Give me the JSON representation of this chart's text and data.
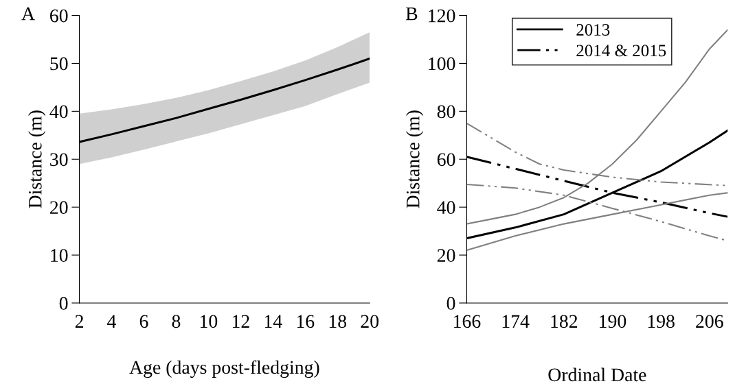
{
  "chart_data": [
    {
      "type": "line",
      "ylabel": "Distance (m)",
      "xlabel": "Age (days post-fledging)",
      "annotations": [
        "A"
      ],
      "xlim": [
        2,
        20
      ],
      "xticks": [
        2,
        4,
        6,
        8,
        10,
        12,
        14,
        16,
        18,
        20
      ],
      "ylim": [
        0,
        60
      ],
      "yticks": [
        0,
        10,
        20,
        30,
        40,
        50,
        60
      ],
      "grid": false,
      "legend": false,
      "x": [
        2,
        4,
        6,
        8,
        10,
        12,
        14,
        16,
        18,
        20
      ],
      "series": [
        {
          "color": "#000000",
          "line_style": "solid",
          "values": [
            33.6,
            35.2,
            36.9,
            38.6,
            40.5,
            42.4,
            44.4,
            46.5,
            48.7,
            51.0
          ],
          "lower": [
            29.0,
            30.4,
            32.0,
            33.7,
            35.4,
            37.3,
            39.2,
            41.1,
            43.6,
            46.0
          ],
          "upper": [
            39.5,
            40.4,
            41.5,
            42.8,
            44.4,
            46.3,
            48.3,
            50.6,
            53.4,
            56.5
          ]
        }
      ]
    },
    {
      "type": "line",
      "ylabel": "Distance (m)",
      "xlabel": "Ordinal Date",
      "annotations": [
        "B"
      ],
      "xlim": [
        166,
        209
      ],
      "xticks": [
        166,
        174,
        182,
        190,
        198,
        206
      ],
      "ylim": [
        0,
        120
      ],
      "yticks": [
        0,
        20,
        40,
        60,
        80,
        100,
        120
      ],
      "grid": false,
      "legend": "top",
      "series": [
        {
          "name": "2013",
          "color": "#000000",
          "line_style": "solid",
          "x": [
            166,
            174,
            182,
            190,
            198,
            206,
            209
          ],
          "values": [
            27,
            31.5,
            37,
            46,
            55,
            67,
            72
          ]
        },
        {
          "name": "2014 & 2015",
          "color": "#000000",
          "line_style": "dashdotdot",
          "x": [
            166,
            174,
            182,
            190,
            198,
            206,
            209
          ],
          "values": [
            61,
            56,
            51,
            46,
            42,
            37.5,
            36
          ]
        },
        {
          "color": "#808080",
          "line_style": "solid",
          "x": [
            166,
            170,
            174,
            178,
            182,
            186,
            190,
            194,
            198,
            202,
            206,
            209
          ],
          "values": [
            33,
            35,
            37,
            40,
            44,
            50,
            58,
            68,
            80,
            92,
            106,
            114
          ]
        },
        {
          "color": "#808080",
          "line_style": "solid",
          "x": [
            166,
            174,
            182,
            190,
            198,
            206,
            209
          ],
          "values": [
            22,
            28,
            33,
            37,
            41,
            45,
            46
          ]
        },
        {
          "color": "#808080",
          "line_style": "dashdotdot",
          "x": [
            166,
            170,
            174,
            178,
            182,
            190,
            198,
            209
          ],
          "values": [
            75,
            69,
            63,
            58,
            55.5,
            52.5,
            50.5,
            49
          ]
        },
        {
          "color": "#808080",
          "line_style": "dashdotdot",
          "x": [
            166,
            174,
            182,
            190,
            198,
            206,
            209
          ],
          "values": [
            49.5,
            48,
            45,
            39.5,
            34,
            28,
            26
          ]
        }
      ]
    }
  ]
}
